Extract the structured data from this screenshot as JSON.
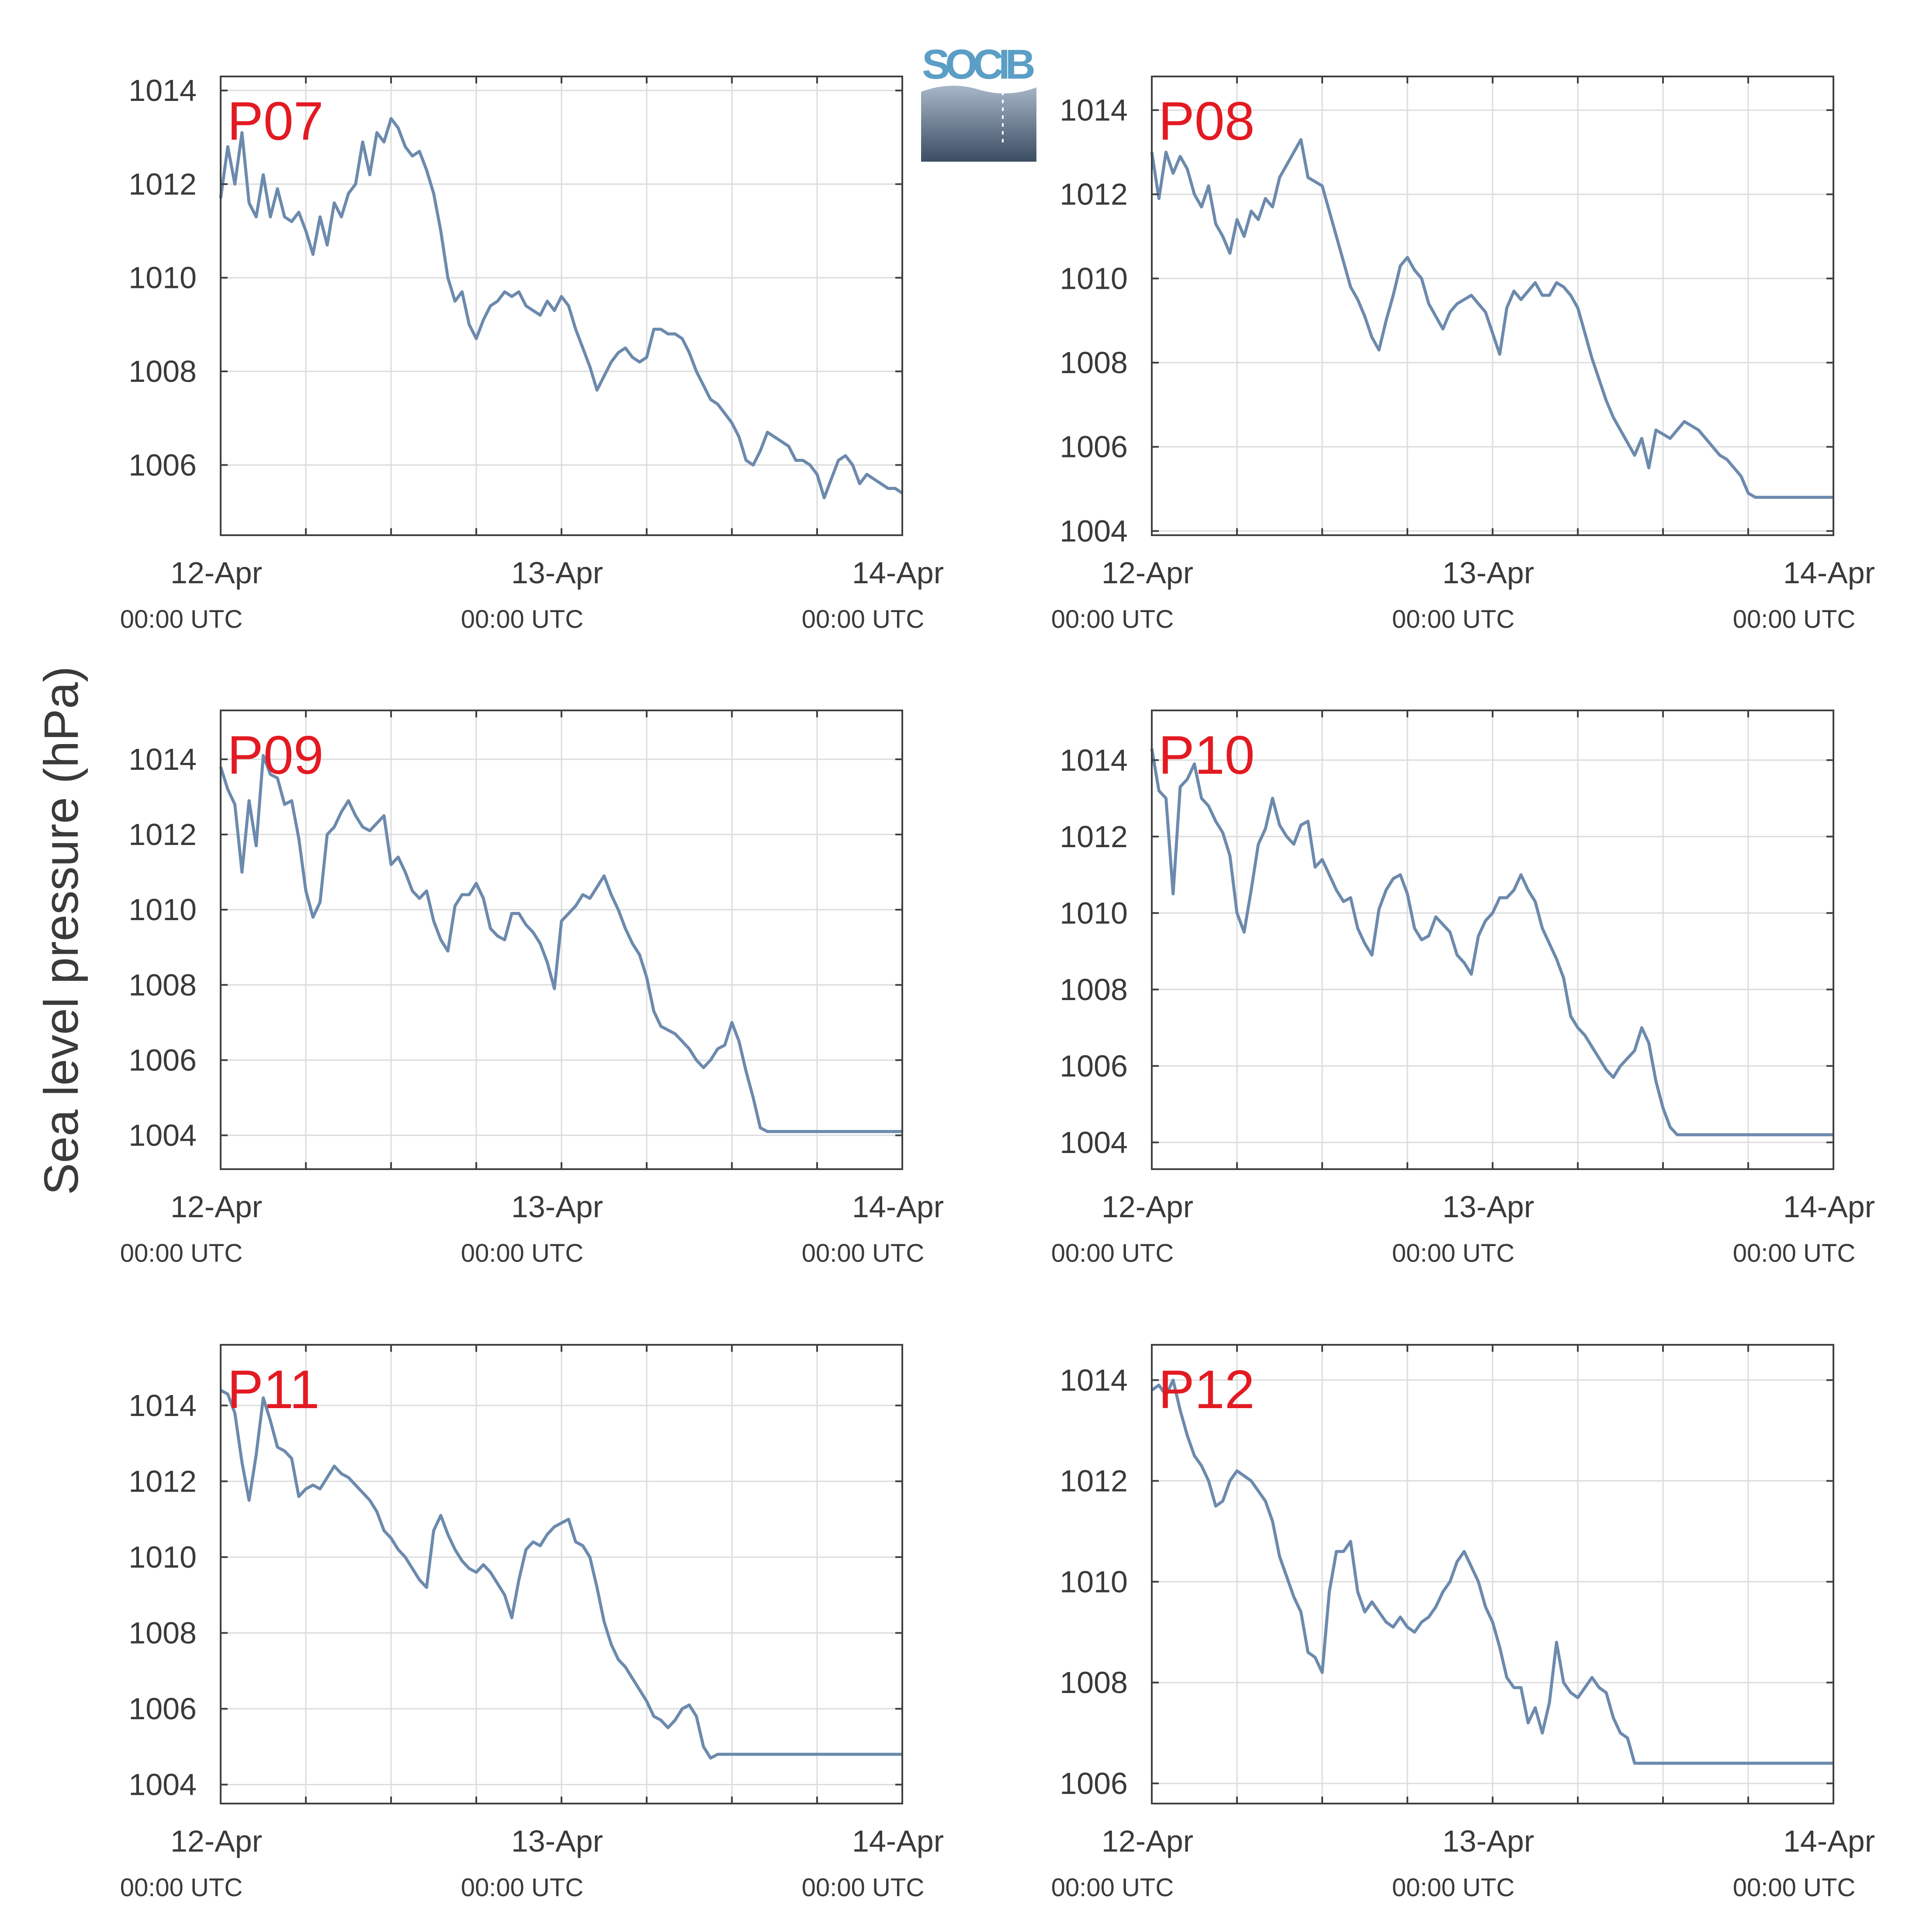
{
  "ylabel": "Sea level pressure (hPa)",
  "logo": {
    "text": "SOCIB",
    "colors": [
      "#5b9ec6",
      "#3b4d62"
    ]
  },
  "x_ticks": [
    {
      "day": "12-Apr",
      "time": "00:00 UTC"
    },
    {
      "day": "13-Apr",
      "time": "00:00 UTC"
    },
    {
      "day": "14-Apr",
      "time": "00:00 UTC"
    }
  ],
  "line_color": "#6c8aad",
  "station_label_color": "#e31a22",
  "chart_data": [
    {
      "type": "line",
      "title": "P07",
      "xlabel": "",
      "ylabel": "Sea level pressure (hPa)",
      "x_unit": "hours since 12-Apr 00:00 UTC",
      "xlim": [
        0,
        48
      ],
      "ylim": [
        1004.5,
        1014.3
      ],
      "y_ticks": [
        1006,
        1008,
        1010,
        1012,
        1014
      ],
      "grid": true,
      "x": [
        0,
        0.5,
        1,
        1.5,
        2,
        2.5,
        3,
        3.5,
        4,
        4.5,
        5,
        5.5,
        6,
        6.5,
        7,
        7.5,
        8,
        8.5,
        9,
        9.5,
        10,
        10.5,
        11,
        11.5,
        12,
        12.5,
        13,
        13.5,
        14,
        14.5,
        15,
        15.5,
        16,
        16.5,
        17,
        17.5,
        18,
        18.5,
        19,
        19.5,
        20,
        20.5,
        21,
        21.5,
        22,
        22.5,
        23,
        23.5,
        24,
        24.5,
        25,
        25.5,
        26,
        26.5,
        27,
        27.5,
        28,
        28.5,
        29,
        29.5,
        30,
        30.5,
        31,
        31.5,
        32,
        32.5,
        33,
        33.5,
        34,
        34.5,
        35,
        35.5,
        36,
        36.5,
        37,
        37.5,
        38,
        38.5,
        39,
        39.5,
        40,
        40.5,
        41,
        41.5,
        42,
        42.5,
        43,
        43.5,
        44,
        44.5,
        45,
        45.5,
        46,
        46.5,
        47,
        47.5,
        48
      ],
      "y": [
        1011.7,
        1012.8,
        1012.0,
        1013.1,
        1011.6,
        1011.3,
        1012.2,
        1011.3,
        1011.9,
        1011.3,
        1011.2,
        1011.4,
        1011.0,
        1010.5,
        1011.3,
        1010.7,
        1011.6,
        1011.3,
        1011.8,
        1012.0,
        1012.9,
        1012.2,
        1013.1,
        1012.9,
        1013.4,
        1013.2,
        1012.8,
        1012.6,
        1012.7,
        1012.3,
        1011.8,
        1011.0,
        1010.0,
        1009.5,
        1009.7,
        1009.0,
        1008.7,
        1009.1,
        1009.4,
        1009.5,
        1009.7,
        1009.6,
        1009.7,
        1009.4,
        1009.3,
        1009.2,
        1009.5,
        1009.3,
        1009.6,
        1009.4,
        1008.9,
        1008.5,
        1008.1,
        1007.6,
        1007.9,
        1008.2,
        1008.4,
        1008.5,
        1008.3,
        1008.2,
        1008.3,
        1008.9,
        1008.9,
        1008.8,
        1008.8,
        1008.7,
        1008.4,
        1008.0,
        1007.7,
        1007.4,
        1007.3,
        1007.1,
        1006.9,
        1006.6,
        1006.1,
        1006.0,
        1006.3,
        1006.7,
        1006.6,
        1006.5,
        1006.4,
        1006.1,
        1006.1,
        1006.0,
        1005.8,
        1005.3,
        1005.7,
        1006.1,
        1006.2,
        1006.0,
        1005.6,
        1005.8,
        1005.7,
        1005.6,
        1005.5,
        1005.5,
        1005.4
      ]
    },
    {
      "type": "line",
      "title": "P08",
      "xlabel": "",
      "ylabel": "Sea level pressure (hPa)",
      "x_unit": "hours since 12-Apr 00:00 UTC",
      "xlim": [
        0,
        48
      ],
      "ylim": [
        1003.9,
        1014.8
      ],
      "y_ticks": [
        1004,
        1006,
        1008,
        1010,
        1012,
        1014
      ],
      "grid": true,
      "x": [
        0,
        0.5,
        1,
        1.5,
        2,
        2.5,
        3,
        3.5,
        4,
        4.5,
        5,
        5.5,
        6,
        6.5,
        7,
        7.5,
        8,
        8.5,
        9,
        9.5,
        10,
        10.5,
        11,
        11.5,
        12,
        12.5,
        13,
        13.5,
        14,
        14.5,
        15,
        15.5,
        16,
        16.5,
        17,
        17.5,
        18,
        18.5,
        19,
        19.5,
        20,
        20.5,
        21,
        21.5,
        22,
        22.5,
        23,
        23.5,
        24,
        24.5,
        25,
        25.5,
        26,
        26.5,
        27,
        27.5,
        28,
        28.5,
        29,
        29.5,
        30,
        30.5,
        31,
        31.5,
        32,
        32.5,
        33,
        33.5,
        34,
        34.5,
        35,
        35.5,
        36,
        36.5,
        37,
        37.5,
        38,
        38.5,
        39,
        39.5,
        40,
        40.5,
        41,
        41.5,
        42,
        42.5,
        43,
        43.5,
        44,
        44.5,
        45,
        45.5,
        46,
        46.5,
        47,
        47.5,
        48
      ],
      "y": [
        1013.0,
        1011.9,
        1013.0,
        1012.5,
        1012.9,
        1012.6,
        1012.0,
        1011.7,
        1012.2,
        1011.3,
        1011.0,
        1010.6,
        1011.4,
        1011.0,
        1011.6,
        1011.4,
        1011.9,
        1011.7,
        1012.4,
        1012.7,
        1013.0,
        1013.3,
        1012.4,
        1012.3,
        1012.2,
        1011.6,
        1011.0,
        1010.4,
        1009.8,
        1009.5,
        1009.1,
        1008.6,
        1008.3,
        1009.0,
        1009.6,
        1010.3,
        1010.5,
        1010.2,
        1010.0,
        1009.4,
        1009.1,
        1008.8,
        1009.2,
        1009.4,
        1009.5,
        1009.6,
        1009.4,
        1009.2,
        1008.7,
        1008.2,
        1009.3,
        1009.7,
        1009.5,
        1009.7,
        1009.9,
        1009.6,
        1009.6,
        1009.9,
        1009.8,
        1009.6,
        1009.3,
        1008.7,
        1008.1,
        1007.6,
        1007.1,
        1006.7,
        1006.4,
        1006.1,
        1005.8,
        1006.2,
        1005.5,
        1006.4,
        1006.3,
        1006.2,
        1006.4,
        1006.6,
        1006.5,
        1006.4,
        1006.2,
        1006.0,
        1005.8,
        1005.7,
        1005.5,
        1005.3,
        1004.9,
        1004.8,
        1004.8,
        1004.8,
        1004.8,
        1004.8,
        1004.8,
        1004.8,
        1004.8,
        1004.8,
        1004.8,
        1004.8,
        1004.8
      ]
    },
    {
      "type": "line",
      "title": "P09",
      "xlabel": "",
      "ylabel": "Sea level pressure (hPa)",
      "x_unit": "hours since 12-Apr 00:00 UTC",
      "xlim": [
        0,
        48
      ],
      "ylim": [
        1003.1,
        1015.3
      ],
      "y_ticks": [
        1004,
        1006,
        1008,
        1010,
        1012,
        1014
      ],
      "grid": true,
      "x": [
        0,
        0.5,
        1,
        1.5,
        2,
        2.5,
        3,
        3.5,
        4,
        4.5,
        5,
        5.5,
        6,
        6.5,
        7,
        7.5,
        8,
        8.5,
        9,
        9.5,
        10,
        10.5,
        11,
        11.5,
        12,
        12.5,
        13,
        13.5,
        14,
        14.5,
        15,
        15.5,
        16,
        16.5,
        17,
        17.5,
        18,
        18.5,
        19,
        19.5,
        20,
        20.5,
        21,
        21.5,
        22,
        22.5,
        23,
        23.5,
        24,
        24.5,
        25,
        25.5,
        26,
        26.5,
        27,
        27.5,
        28,
        28.5,
        29,
        29.5,
        30,
        30.5,
        31,
        31.5,
        32,
        32.5,
        33,
        33.5,
        34,
        34.5,
        35,
        35.5,
        36,
        36.5,
        37,
        37.5,
        38,
        38.5,
        39,
        39.5,
        40,
        40.5,
        41,
        41.5,
        42,
        42.5,
        43,
        43.5,
        44,
        44.5,
        45,
        45.5,
        46,
        46.5,
        47,
        47.5,
        48
      ],
      "y": [
        1013.8,
        1013.2,
        1012.8,
        1011.0,
        1012.9,
        1011.7,
        1014.1,
        1013.6,
        1013.5,
        1012.8,
        1012.9,
        1011.9,
        1010.5,
        1009.8,
        1010.2,
        1012.0,
        1012.2,
        1012.6,
        1012.9,
        1012.5,
        1012.2,
        1012.1,
        1012.3,
        1012.5,
        1011.2,
        1011.4,
        1011.0,
        1010.5,
        1010.3,
        1010.5,
        1009.7,
        1009.2,
        1008.9,
        1010.1,
        1010.4,
        1010.4,
        1010.7,
        1010.3,
        1009.5,
        1009.3,
        1009.2,
        1009.9,
        1009.9,
        1009.6,
        1009.4,
        1009.1,
        1008.6,
        1007.9,
        1009.7,
        1009.9,
        1010.1,
        1010.4,
        1010.3,
        1010.6,
        1010.9,
        1010.4,
        1010.0,
        1009.5,
        1009.1,
        1008.8,
        1008.2,
        1007.3,
        1006.9,
        1006.8,
        1006.7,
        1006.5,
        1006.3,
        1006.0,
        1005.8,
        1006.0,
        1006.3,
        1006.4,
        1007.0,
        1006.5,
        1005.7,
        1005.0,
        1004.2,
        1004.1,
        1004.1,
        1004.1,
        1004.1,
        1004.1,
        1004.1,
        1004.1,
        1004.1,
        1004.1,
        1004.1,
        1004.1,
        1004.1,
        1004.1,
        1004.1,
        1004.1,
        1004.1,
        1004.1,
        1004.1,
        1004.1,
        1004.1
      ]
    },
    {
      "type": "line",
      "title": "P10",
      "xlabel": "",
      "ylabel": "Sea level pressure (hPa)",
      "x_unit": "hours since 12-Apr 00:00 UTC",
      "xlim": [
        0,
        48
      ],
      "ylim": [
        1003.3,
        1015.3
      ],
      "y_ticks": [
        1004,
        1006,
        1008,
        1010,
        1012,
        1014
      ],
      "grid": true,
      "x": [
        0,
        0.5,
        1,
        1.5,
        2,
        2.5,
        3,
        3.5,
        4,
        4.5,
        5,
        5.5,
        6,
        6.5,
        7,
        7.5,
        8,
        8.5,
        9,
        9.5,
        10,
        10.5,
        11,
        11.5,
        12,
        12.5,
        13,
        13.5,
        14,
        14.5,
        15,
        15.5,
        16,
        16.5,
        17,
        17.5,
        18,
        18.5,
        19,
        19.5,
        20,
        20.5,
        21,
        21.5,
        22,
        22.5,
        23,
        23.5,
        24,
        24.5,
        25,
        25.5,
        26,
        26.5,
        27,
        27.5,
        28,
        28.5,
        29,
        29.5,
        30,
        30.5,
        31,
        31.5,
        32,
        32.5,
        33,
        33.5,
        34,
        34.5,
        35,
        35.5,
        36,
        36.5,
        37,
        37.5,
        38,
        38.5,
        39,
        39.5,
        40,
        40.5,
        41,
        41.5,
        42,
        42.5,
        43,
        43.5,
        44,
        44.5,
        45,
        45.5,
        46,
        46.5,
        47,
        47.5,
        48
      ],
      "y": [
        1014.3,
        1013.2,
        1013.0,
        1010.5,
        1013.3,
        1013.5,
        1013.9,
        1013.0,
        1012.8,
        1012.4,
        1012.1,
        1011.5,
        1010.0,
        1009.5,
        1010.6,
        1011.8,
        1012.2,
        1013.0,
        1012.3,
        1012.0,
        1011.8,
        1012.3,
        1012.4,
        1011.2,
        1011.4,
        1011.0,
        1010.6,
        1010.3,
        1010.4,
        1009.6,
        1009.2,
        1008.9,
        1010.1,
        1010.6,
        1010.9,
        1011.0,
        1010.5,
        1009.6,
        1009.3,
        1009.4,
        1009.9,
        1009.7,
        1009.5,
        1008.9,
        1008.7,
        1008.4,
        1009.4,
        1009.8,
        1010.0,
        1010.4,
        1010.4,
        1010.6,
        1011.0,
        1010.6,
        1010.3,
        1009.6,
        1009.2,
        1008.8,
        1008.3,
        1007.3,
        1007.0,
        1006.8,
        1006.5,
        1006.2,
        1005.9,
        1005.7,
        1006.0,
        1006.2,
        1006.4,
        1007.0,
        1006.6,
        1005.6,
        1004.9,
        1004.4,
        1004.2,
        1004.2,
        1004.2,
        1004.2,
        1004.2,
        1004.2,
        1004.2,
        1004.2,
        1004.2,
        1004.2,
        1004.2,
        1004.2,
        1004.2,
        1004.2,
        1004.2,
        1004.2,
        1004.2,
        1004.2,
        1004.2,
        1004.2,
        1004.2,
        1004.2,
        1004.2
      ]
    },
    {
      "type": "line",
      "title": "P11",
      "xlabel": "",
      "ylabel": "Sea level pressure (hPa)",
      "x_unit": "hours since 12-Apr 00:00 UTC",
      "xlim": [
        0,
        48
      ],
      "ylim": [
        1003.5,
        1015.6
      ],
      "y_ticks": [
        1004,
        1006,
        1008,
        1010,
        1012,
        1014
      ],
      "grid": true,
      "x": [
        0,
        0.5,
        1,
        1.5,
        2,
        2.5,
        3,
        3.5,
        4,
        4.5,
        5,
        5.5,
        6,
        6.5,
        7,
        7.5,
        8,
        8.5,
        9,
        9.5,
        10,
        10.5,
        11,
        11.5,
        12,
        12.5,
        13,
        13.5,
        14,
        14.5,
        15,
        15.5,
        16,
        16.5,
        17,
        17.5,
        18,
        18.5,
        19,
        19.5,
        20,
        20.5,
        21,
        21.5,
        22,
        22.5,
        23,
        23.5,
        24,
        24.5,
        25,
        25.5,
        26,
        26.5,
        27,
        27.5,
        28,
        28.5,
        29,
        29.5,
        30,
        30.5,
        31,
        31.5,
        32,
        32.5,
        33,
        33.5,
        34,
        34.5,
        35,
        35.5,
        36,
        36.5,
        37,
        37.5,
        38,
        38.5,
        39,
        39.5,
        40,
        40.5,
        41,
        41.5,
        42,
        42.5,
        43,
        43.5,
        44,
        44.5,
        45,
        45.5,
        46,
        46.5,
        47,
        47.5,
        48
      ],
      "y": [
        1014.4,
        1014.3,
        1013.8,
        1012.5,
        1011.5,
        1012.7,
        1014.2,
        1013.6,
        1012.9,
        1012.8,
        1012.6,
        1011.6,
        1011.8,
        1011.9,
        1011.8,
        1012.1,
        1012.4,
        1012.2,
        1012.1,
        1011.9,
        1011.7,
        1011.5,
        1011.2,
        1010.7,
        1010.5,
        1010.2,
        1010.0,
        1009.7,
        1009.4,
        1009.2,
        1010.7,
        1011.1,
        1010.6,
        1010.2,
        1009.9,
        1009.7,
        1009.6,
        1009.8,
        1009.6,
        1009.3,
        1009.0,
        1008.4,
        1009.4,
        1010.2,
        1010.4,
        1010.3,
        1010.6,
        1010.8,
        1010.9,
        1011.0,
        1010.4,
        1010.3,
        1010.0,
        1009.2,
        1008.3,
        1007.7,
        1007.3,
        1007.1,
        1006.8,
        1006.5,
        1006.2,
        1005.8,
        1005.7,
        1005.5,
        1005.7,
        1006.0,
        1006.1,
        1005.8,
        1005.0,
        1004.7,
        1004.8,
        1004.8,
        1004.8,
        1004.8,
        1004.8,
        1004.8,
        1004.8,
        1004.8,
        1004.8,
        1004.8,
        1004.8,
        1004.8,
        1004.8,
        1004.8,
        1004.8,
        1004.8,
        1004.8,
        1004.8,
        1004.8,
        1004.8,
        1004.8,
        1004.8,
        1004.8,
        1004.8,
        1004.8,
        1004.8,
        1004.8
      ]
    },
    {
      "type": "line",
      "title": "P12",
      "xlabel": "",
      "ylabel": "Sea level pressure (hPa)",
      "x_unit": "hours since 12-Apr 00:00 UTC",
      "xlim": [
        0,
        48
      ],
      "ylim": [
        1005.6,
        1014.7
      ],
      "y_ticks": [
        1006,
        1008,
        1010,
        1012,
        1014
      ],
      "grid": true,
      "x": [
        0,
        0.5,
        1,
        1.5,
        2,
        2.5,
        3,
        3.5,
        4,
        4.5,
        5,
        5.5,
        6,
        6.5,
        7,
        7.5,
        8,
        8.5,
        9,
        9.5,
        10,
        10.5,
        11,
        11.5,
        12,
        12.5,
        13,
        13.5,
        14,
        14.5,
        15,
        15.5,
        16,
        16.5,
        17,
        17.5,
        18,
        18.5,
        19,
        19.5,
        20,
        20.5,
        21,
        21.5,
        22,
        22.5,
        23,
        23.5,
        24,
        24.5,
        25,
        25.5,
        26,
        26.5,
        27,
        27.5,
        28,
        28.5,
        29,
        29.5,
        30,
        30.5,
        31,
        31.5,
        32,
        32.5,
        33,
        33.5,
        34,
        34.5,
        35,
        35.5,
        36,
        36.5,
        37,
        37.5,
        38,
        38.5,
        39,
        39.5,
        40,
        40.5,
        41,
        41.5,
        42,
        42.5,
        43,
        43.5,
        44,
        44.5,
        45,
        45.5,
        46,
        46.5,
        47,
        47.5,
        48
      ],
      "y": [
        1013.8,
        1013.9,
        1013.7,
        1014.0,
        1013.4,
        1012.9,
        1012.5,
        1012.3,
        1012.0,
        1011.5,
        1011.6,
        1012.0,
        1012.2,
        1012.1,
        1012.0,
        1011.8,
        1011.6,
        1011.2,
        1010.5,
        1010.1,
        1009.7,
        1009.4,
        1008.6,
        1008.5,
        1008.2,
        1009.8,
        1010.6,
        1010.6,
        1010.8,
        1009.8,
        1009.4,
        1009.6,
        1009.4,
        1009.2,
        1009.1,
        1009.3,
        1009.1,
        1009.0,
        1009.2,
        1009.3,
        1009.5,
        1009.8,
        1010.0,
        1010.4,
        1010.6,
        1010.3,
        1010.0,
        1009.5,
        1009.2,
        1008.7,
        1008.1,
        1007.9,
        1007.9,
        1007.2,
        1007.5,
        1007.0,
        1007.6,
        1008.8,
        1008.0,
        1007.8,
        1007.7,
        1007.9,
        1008.1,
        1007.9,
        1007.8,
        1007.3,
        1007.0,
        1006.9,
        1006.4,
        1006.4,
        1006.4,
        1006.4,
        1006.4,
        1006.4,
        1006.4,
        1006.4,
        1006.4,
        1006.4,
        1006.4,
        1006.4,
        1006.4,
        1006.4,
        1006.4,
        1006.4,
        1006.4,
        1006.4,
        1006.4,
        1006.4,
        1006.4,
        1006.4,
        1006.4,
        1006.4,
        1006.4,
        1006.4,
        1006.4,
        1006.4,
        1006.4
      ]
    }
  ]
}
